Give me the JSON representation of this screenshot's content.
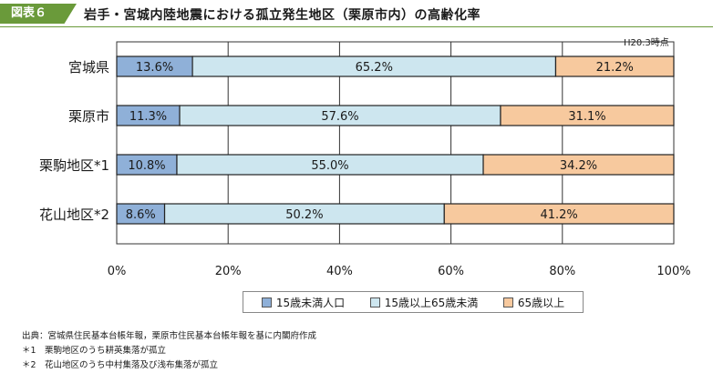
{
  "header": {
    "badge": "図表６",
    "title": "岩手・宮城内陸地震における孤立発生地区（栗原市内）の高齢化率"
  },
  "as_of": "H20.3時点",
  "legend": [
    {
      "label": "15歳未満人口",
      "color": "#8fb0d8"
    },
    {
      "label": "15歳以上65歳未満",
      "color": "#cde6ef"
    },
    {
      "label": "65歳以上",
      "color": "#f7c99e"
    }
  ],
  "notes": [
    "出典：宮城県住民基本台帳年報，栗原市住民基本台帳年報を基に内閣府作成",
    "＊1　栗駒地区のうち耕英集落が孤立",
    "＊2　花山地区のうち中村集落及び浅布集落が孤立"
  ],
  "chart_data": {
    "type": "bar",
    "orientation": "horizontal",
    "stacked": true,
    "categories": [
      "宮城県",
      "栗原市",
      "栗駒地区*1",
      "花山地区*2"
    ],
    "series": [
      {
        "name": "15歳未満人口",
        "values": [
          13.6,
          11.3,
          10.8,
          8.6
        ],
        "labels": [
          "13.6%",
          "11.3%",
          "10.8%",
          "8.6%"
        ],
        "color": "#8fb0d8"
      },
      {
        "name": "15歳以上65歳未満",
        "values": [
          65.2,
          57.6,
          55.0,
          50.2
        ],
        "labels": [
          "65.2%",
          "57.6%",
          "55.0%",
          "50.2%"
        ],
        "color": "#cde6ef"
      },
      {
        "name": "65歳以上",
        "values": [
          21.2,
          31.1,
          34.2,
          41.2
        ],
        "labels": [
          "21.2%",
          "31.1%",
          "34.2%",
          "41.2%"
        ],
        "color": "#f7c99e"
      }
    ],
    "x_ticks": [
      0,
      20,
      40,
      60,
      80,
      100
    ],
    "x_tick_labels": [
      "0%",
      "20%",
      "40%",
      "60%",
      "80%",
      "100%"
    ],
    "xlim": [
      0,
      100
    ],
    "grid": true,
    "legend_position": "bottom"
  }
}
